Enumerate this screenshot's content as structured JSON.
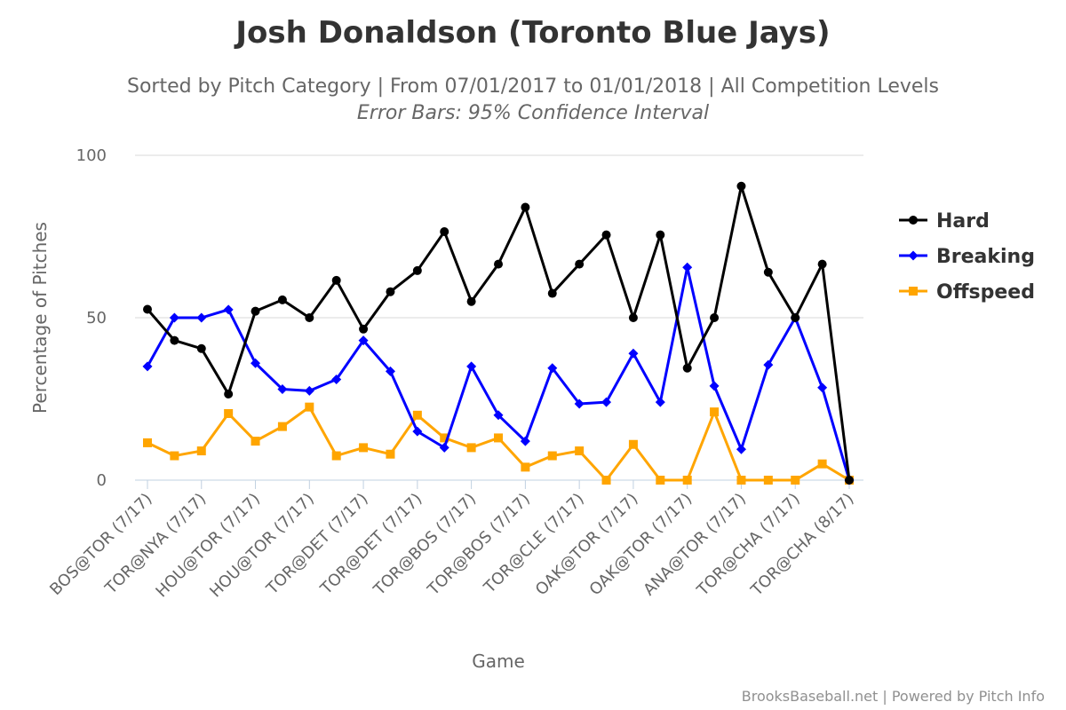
{
  "chart_data": {
    "type": "line",
    "title": "Josh Donaldson (Toronto Blue Jays)",
    "subtitle": "Sorted by Pitch Category | From 07/01/2017 to 01/01/2018 | All Competition Levels",
    "subtitle2": "Error Bars: 95% Confidence Interval",
    "xlabel": "Game",
    "ylabel": "Percentage of Pitches",
    "ylim": [
      0,
      100
    ],
    "yticks": [
      "0",
      "50",
      "100"
    ],
    "grid": true,
    "legend_position": "right",
    "credits": "BrooksBaseball.net | Powered by Pitch Info",
    "x_labels": [
      "BOS@TOR (7/17)",
      "TOR@NYA (7/17)",
      "HOU@TOR (7/17)",
      "HOU@TOR (7/17)",
      "TOR@DET (7/17)",
      "TOR@DET (7/17)",
      "TOR@BOS (7/17)",
      "TOR@BOS (7/17)",
      "TOR@CLE (7/17)",
      "OAK@TOR (7/17)",
      "OAK@TOR (7/17)",
      "ANA@TOR (7/17)",
      "TOR@CHA (7/17)",
      "TOR@CHA (8/17)"
    ],
    "series": [
      {
        "name": "Hard",
        "color": "#000000",
        "marker": "circle",
        "values": [
          52.6,
          43.0,
          40.5,
          26.5,
          52.0,
          55.5,
          50.0,
          61.5,
          46.5,
          58.0,
          64.5,
          76.5,
          55.0,
          66.5,
          84.0,
          57.5,
          66.5,
          75.5,
          50.0,
          75.5,
          34.5,
          50.0,
          90.5,
          64.0,
          50.0,
          66.5,
          0.0
        ]
      },
      {
        "name": "Breaking",
        "color": "#0000ff",
        "marker": "diamond",
        "values": [
          35.0,
          50.0,
          50.0,
          52.5,
          36.0,
          28.0,
          27.5,
          31.0,
          43.0,
          33.5,
          15.0,
          10.0,
          35.0,
          20.0,
          12.0,
          34.5,
          23.5,
          24.0,
          39.0,
          24.0,
          65.5,
          29.0,
          9.5,
          35.5,
          50.0,
          28.5,
          0.0
        ]
      },
      {
        "name": "Offspeed",
        "color": "#ffa500",
        "marker": "square",
        "values": [
          11.5,
          7.5,
          9.0,
          20.5,
          12.0,
          16.5,
          22.5,
          7.5,
          10.0,
          8.0,
          20.0,
          13.0,
          10.0,
          13.0,
          4.0,
          7.5,
          9.0,
          0.0,
          11.0,
          0.0,
          0.0,
          21.0,
          0.0,
          0.0,
          0.0,
          5.0,
          0.0
        ]
      }
    ]
  }
}
